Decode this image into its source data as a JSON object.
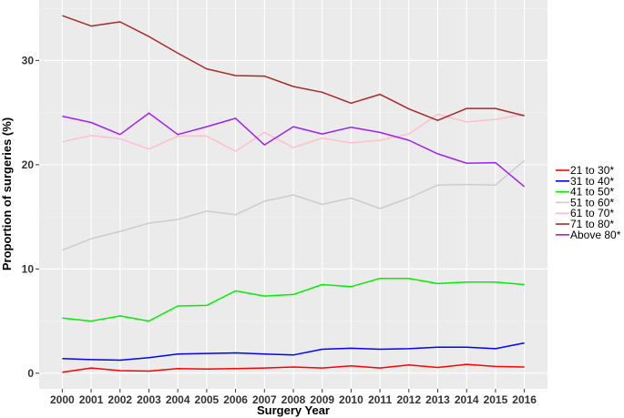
{
  "chart_data": {
    "type": "line",
    "title": "",
    "xlabel": "Surgery Year",
    "ylabel": "Proportion of surgeries (%)",
    "x": [
      2000,
      2001,
      2002,
      2003,
      2004,
      2005,
      2006,
      2007,
      2008,
      2009,
      2010,
      2011,
      2012,
      2013,
      2014,
      2015,
      2016
    ],
    "ylim": [
      -1.5,
      35.8
    ],
    "yticks": [
      0,
      10,
      20,
      30
    ],
    "grid": true,
    "legend_position": "right",
    "series": [
      {
        "name": "21 to 30*",
        "color": "#ff0000",
        "values": [
          0.1,
          0.5,
          0.25,
          0.2,
          0.45,
          0.4,
          0.45,
          0.5,
          0.6,
          0.5,
          0.7,
          0.5,
          0.8,
          0.55,
          0.85,
          0.65,
          0.6
        ]
      },
      {
        "name": "31 to 40*",
        "color": "#0000ff",
        "values": [
          1.4,
          1.3,
          1.25,
          1.5,
          1.85,
          1.9,
          1.95,
          1.85,
          1.75,
          2.3,
          2.4,
          2.3,
          2.35,
          2.5,
          2.5,
          2.35,
          2.9
        ]
      },
      {
        "name": "41 to 50*",
        "color": "#00ee00",
        "values": [
          5.3,
          5.0,
          5.5,
          5.0,
          6.45,
          6.5,
          7.9,
          7.4,
          7.55,
          8.5,
          8.3,
          9.1,
          9.1,
          8.6,
          8.75,
          8.75,
          8.5
        ]
      },
      {
        "name": "51 to 60*",
        "color": "#cccccc",
        "values": [
          11.8,
          12.9,
          13.6,
          14.4,
          14.75,
          15.55,
          15.2,
          16.5,
          17.1,
          16.2,
          16.8,
          15.8,
          16.8,
          18.05,
          18.1,
          18.05,
          20.4
        ]
      },
      {
        "name": "61 to 70*",
        "color": "#ffc0cb",
        "values": [
          22.2,
          22.8,
          22.5,
          21.5,
          22.75,
          22.75,
          21.3,
          23.1,
          21.65,
          22.55,
          22.1,
          22.35,
          22.95,
          24.85,
          24.1,
          24.35,
          24.85
        ]
      },
      {
        "name": "71 to 80*",
        "color": "#a52a2a",
        "values": [
          34.3,
          33.3,
          33.7,
          32.3,
          30.7,
          29.2,
          28.55,
          28.5,
          27.5,
          26.95,
          25.9,
          26.75,
          25.35,
          24.25,
          25.4,
          25.4,
          24.7
        ]
      },
      {
        "name": "Above 80*",
        "color": "#a020f0",
        "values": [
          24.65,
          24.05,
          22.9,
          24.95,
          22.9,
          23.65,
          24.45,
          21.9,
          23.65,
          22.95,
          23.6,
          23.1,
          22.35,
          21.05,
          20.15,
          20.2,
          17.9
        ]
      }
    ]
  }
}
